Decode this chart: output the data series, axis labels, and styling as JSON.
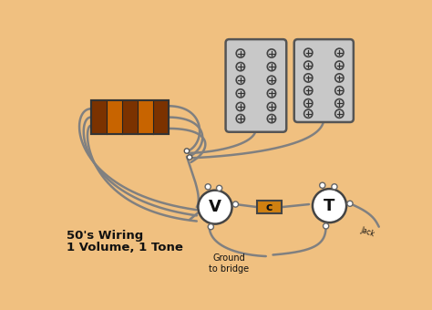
{
  "bg_color": "#F0C080",
  "wire_color": "#808080",
  "wire_lw": 1.8,
  "pickup_fill": "#C8C8C8",
  "pickup_stroke": "#555555",
  "coil_stripe_colors": [
    "#7B3200",
    "#C86400",
    "#7B3200",
    "#C86400",
    "#7B3200"
  ],
  "coil_bg": "#A05010",
  "coil_outline": "#333333",
  "pot_fill": "#FFFFFF",
  "pot_stroke": "#444444",
  "cap_fill": "#D08010",
  "cap_stroke": "#444444",
  "dot_color": "#FFFFFF",
  "dot_stroke": "#666666",
  "text_color": "#111111",
  "title_fontsize": 9.5,
  "pot_V_label": "V",
  "pot_T_label": "T",
  "cap_label": "c",
  "jack_label": "Jack",
  "ground_label": "Ground\nto bridge",
  "title_line1": "50's Wiring",
  "title_line2": "1 Volume, 1 Tone",
  "screw_color": "#444444",
  "screw_line_color": "#333333"
}
